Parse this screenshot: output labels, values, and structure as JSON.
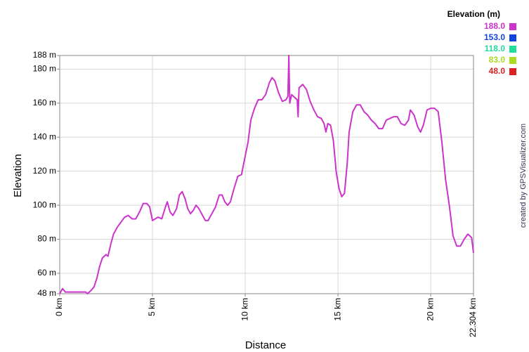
{
  "chart_data": {
    "type": "line",
    "legend_title": "Elevation (m)",
    "legend": [
      {
        "value": 188,
        "label": "188.0",
        "color": "#cc33cc"
      },
      {
        "value": 153,
        "label": "153.0",
        "color": "#1144dd"
      },
      {
        "value": 118,
        "label": "118.0",
        "color": "#22dd99"
      },
      {
        "value": 83,
        "label": "83.0",
        "color": "#aadd22"
      },
      {
        "value": 48,
        "label": "48.0",
        "color": "#dd2222"
      }
    ],
    "y_label": "Elevation",
    "x_label": "Distance",
    "credit": "created by GPSVisualizer.com",
    "xlim": [
      0,
      22.304
    ],
    "ylim": [
      48,
      188
    ],
    "xticks": [
      {
        "value": 0,
        "label": "0 km"
      },
      {
        "value": 5,
        "label": "5 km"
      },
      {
        "value": 10,
        "label": "10 km"
      },
      {
        "value": 15,
        "label": "15 km"
      },
      {
        "value": 20,
        "label": "20 km"
      },
      {
        "value": 22.304,
        "label": "22.304 km"
      }
    ],
    "yticks": [
      {
        "value": 48,
        "label": "48 m"
      },
      {
        "value": 60,
        "label": "60 m"
      },
      {
        "value": 80,
        "label": "80 m"
      },
      {
        "value": 100,
        "label": "100 m"
      },
      {
        "value": 120,
        "label": "120 m"
      },
      {
        "value": 140,
        "label": "140 m"
      },
      {
        "value": 160,
        "label": "160 m"
      },
      {
        "value": 180,
        "label": "180 m"
      },
      {
        "value": 188,
        "label": "188 m"
      }
    ],
    "grid": true,
    "x": [
      0,
      0.15,
      0.3,
      0.6,
      1.0,
      1.4,
      1.5,
      1.7,
      1.85,
      2.0,
      2.15,
      2.3,
      2.5,
      2.6,
      2.75,
      2.9,
      3.1,
      3.3,
      3.5,
      3.7,
      3.9,
      4.1,
      4.3,
      4.5,
      4.7,
      4.85,
      5.0,
      5.15,
      5.3,
      5.5,
      5.7,
      5.8,
      5.95,
      6.1,
      6.3,
      6.45,
      6.6,
      6.75,
      6.9,
      7.05,
      7.2,
      7.35,
      7.5,
      7.7,
      7.85,
      8.0,
      8.2,
      8.4,
      8.6,
      8.75,
      8.9,
      9.05,
      9.2,
      9.4,
      9.6,
      9.8,
      10.0,
      10.15,
      10.3,
      10.5,
      10.7,
      10.9,
      11.1,
      11.3,
      11.45,
      11.6,
      11.8,
      12.0,
      12.2,
      12.3,
      12.35,
      12.4,
      12.5,
      12.6,
      12.8,
      12.85,
      12.9,
      13.1,
      13.3,
      13.5,
      13.7,
      13.9,
      14.1,
      14.25,
      14.35,
      14.45,
      14.6,
      14.75,
      14.9,
      15.05,
      15.2,
      15.35,
      15.5,
      15.6,
      15.8,
      16.0,
      16.2,
      16.4,
      16.6,
      16.8,
      17.0,
      17.2,
      17.4,
      17.6,
      17.8,
      18.0,
      18.2,
      18.4,
      18.6,
      18.8,
      18.9,
      19.1,
      19.3,
      19.45,
      19.6,
      19.8,
      20.0,
      20.2,
      20.4,
      20.6,
      20.8,
      21.0,
      21.2,
      21.4,
      21.6,
      21.8,
      22.0,
      22.2,
      22.304
    ],
    "values": [
      48,
      51,
      49,
      49,
      49,
      49,
      48,
      50,
      52,
      57,
      64,
      69,
      71,
      70,
      77,
      83,
      87,
      90,
      93,
      94,
      92,
      92,
      96,
      101,
      101,
      99,
      91,
      92,
      93,
      92,
      99,
      102,
      96,
      94,
      98,
      106,
      108,
      104,
      98,
      95,
      97,
      100,
      98,
      94,
      91,
      91,
      95,
      99,
      106,
      106,
      102,
      100,
      102,
      110,
      117,
      118,
      129,
      137,
      150,
      157,
      162,
      162,
      165,
      172,
      175,
      173,
      166,
      161,
      162,
      164,
      188,
      160,
      165,
      164,
      162,
      152,
      169,
      171,
      168,
      161,
      156,
      152,
      151,
      148,
      143,
      148,
      147,
      138,
      120,
      110,
      105,
      107,
      125,
      143,
      155,
      159,
      159,
      155,
      153,
      150,
      148,
      145,
      145,
      150,
      151,
      152,
      152,
      148,
      147,
      150,
      156,
      153,
      146,
      143,
      147,
      156,
      157,
      157,
      155,
      137,
      115,
      100,
      82,
      76,
      76,
      80,
      83,
      81,
      72
    ]
  }
}
